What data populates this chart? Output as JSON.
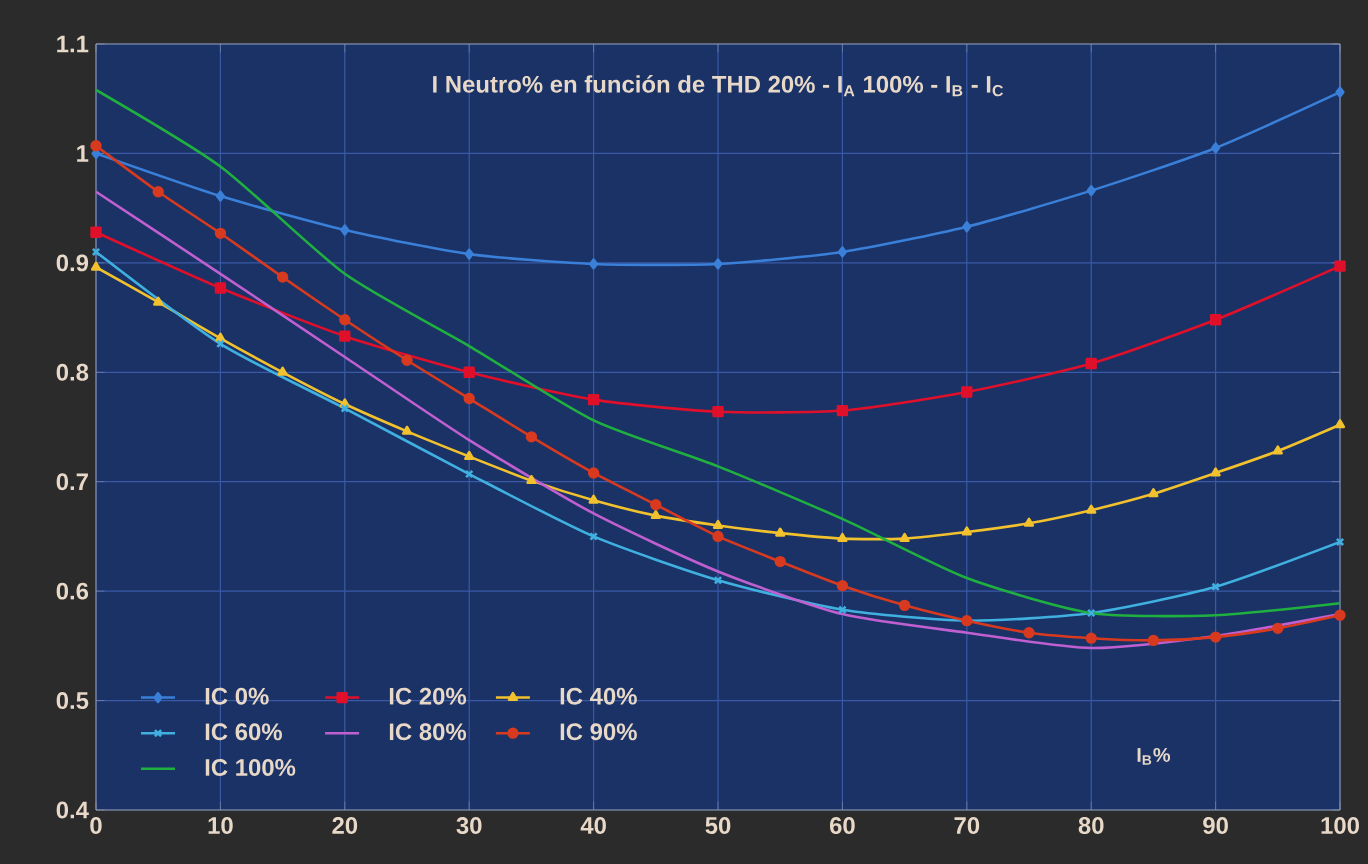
{
  "chart_data": {
    "type": "line",
    "title": "I Neutro% en función de THD 20% - I$_{A}$ 100% - I$_{B}$ - I$_{C}$",
    "xlabel": "I$_{B}$%",
    "xlim": [
      0,
      100
    ],
    "xticks": [
      0,
      10,
      20,
      30,
      40,
      50,
      60,
      70,
      80,
      90,
      100
    ],
    "ylim": [
      0.4,
      1.1
    ],
    "yticks": [
      0.4,
      0.5,
      0.6,
      0.7,
      0.8,
      0.9,
      1,
      1.1
    ],
    "grid": true,
    "legend": "bottom left",
    "series": [
      {
        "name": "IC 0%",
        "color": "#3a7fd8",
        "marker": "diamond",
        "x": [
          0,
          10,
          20,
          30,
          40,
          50,
          60,
          70,
          80,
          90,
          100
        ],
        "values": [
          1.0,
          0.961,
          0.93,
          0.908,
          0.899,
          0.899,
          0.91,
          0.933,
          0.966,
          1.005,
          1.056
        ]
      },
      {
        "name": "IC 20%",
        "color": "#e0102a",
        "marker": "square",
        "x": [
          0,
          10,
          20,
          30,
          40,
          50,
          60,
          70,
          80,
          90,
          100
        ],
        "values": [
          0.928,
          0.877,
          0.833,
          0.8,
          0.775,
          0.764,
          0.765,
          0.782,
          0.808,
          0.848,
          0.897
        ]
      },
      {
        "name": "IC 40%",
        "color": "#f2c12e",
        "marker": "triangle",
        "x": [
          0,
          5,
          10,
          15,
          20,
          25,
          30,
          35,
          40,
          45,
          50,
          55,
          60,
          65,
          70,
          75,
          80,
          85,
          90,
          95,
          100
        ],
        "values": [
          0.896,
          0.864,
          0.831,
          0.8,
          0.771,
          0.746,
          0.723,
          0.701,
          0.683,
          0.669,
          0.66,
          0.653,
          0.648,
          0.648,
          0.654,
          0.662,
          0.674,
          0.689,
          0.708,
          0.728,
          0.752
        ]
      },
      {
        "name": "IC 60%",
        "color": "#40b0e0",
        "marker": "cross",
        "x": [
          0,
          10,
          20,
          30,
          40,
          50,
          60,
          70,
          80,
          90,
          100
        ],
        "values": [
          0.91,
          0.826,
          0.767,
          0.707,
          0.65,
          0.61,
          0.583,
          0.573,
          0.58,
          0.604,
          0.645
        ]
      },
      {
        "name": "IC 80%",
        "color": "#c060d0",
        "marker": "none",
        "x": [
          0,
          10,
          20,
          30,
          40,
          50,
          60,
          70,
          80,
          90,
          100
        ],
        "values": [
          0.965,
          0.89,
          0.814,
          0.738,
          0.671,
          0.618,
          0.579,
          0.562,
          0.548,
          0.559,
          0.579
        ]
      },
      {
        "name": "IC 90%",
        "color": "#d83a20",
        "marker": "circle",
        "x": [
          0,
          5,
          10,
          15,
          20,
          25,
          30,
          35,
          40,
          45,
          50,
          55,
          60,
          65,
          70,
          75,
          80,
          85,
          90,
          95,
          100
        ],
        "values": [
          1.007,
          0.965,
          0.927,
          0.887,
          0.848,
          0.811,
          0.776,
          0.741,
          0.708,
          0.679,
          0.65,
          0.627,
          0.605,
          0.587,
          0.573,
          0.562,
          0.557,
          0.555,
          0.558,
          0.566,
          0.578
        ]
      },
      {
        "name": "IC 100%",
        "color": "#20b040",
        "marker": "none",
        "x": [
          0,
          10,
          20,
          30,
          40,
          50,
          60,
          70,
          80,
          90,
          100
        ],
        "values": [
          1.058,
          0.988,
          0.89,
          0.824,
          0.756,
          0.714,
          0.666,
          0.612,
          0.58,
          0.578,
          0.589
        ]
      }
    ]
  }
}
